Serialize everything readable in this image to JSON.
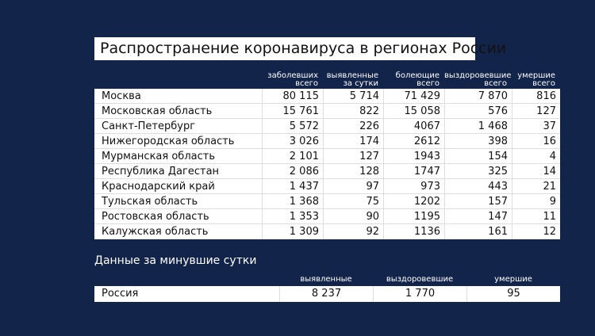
{
  "header": {
    "title": "Распространение коронавируса в регионах России"
  },
  "table": {
    "columns": [
      [
        "заболевших",
        "всего"
      ],
      [
        "выявленные",
        "за сутки"
      ],
      [
        "болеющие",
        "всего"
      ],
      [
        "выздоровевшие",
        "всего"
      ],
      [
        "умершие",
        "всего"
      ]
    ],
    "rows": [
      [
        "Москва",
        "80 115",
        "5 714",
        "71 429",
        "7 870",
        "816"
      ],
      [
        "Московская область",
        "15 761",
        "822",
        "15 058",
        "576",
        "127"
      ],
      [
        "Санкт-Петербург",
        "5 572",
        "226",
        "4067",
        "1 468",
        "37"
      ],
      [
        "Нижегородская область",
        "3 026",
        "174",
        "2612",
        "398",
        "16"
      ],
      [
        "Мурманская область",
        "2 101",
        "127",
        "1943",
        "154",
        "4"
      ],
      [
        "Республика Дагестан",
        "2 086",
        "128",
        "1747",
        "325",
        "14"
      ],
      [
        "Краснодарский край",
        "1 437",
        "97",
        "973",
        "443",
        "21"
      ],
      [
        "Тульская область",
        "1 368",
        "75",
        "1202",
        "157",
        "9"
      ],
      [
        "Ростовская область",
        "1 353",
        "90",
        "1195",
        "147",
        "11"
      ],
      [
        "Калужская область",
        "1 309",
        "92",
        "1136",
        "161",
        "12"
      ]
    ]
  },
  "daily": {
    "title": "Данные за минувшие сутки",
    "columns": [
      "выявленные",
      "выздоровевшие",
      "умершие"
    ],
    "rows": [
      [
        "Россия",
        "8 237",
        "1 770",
        "95"
      ]
    ]
  }
}
